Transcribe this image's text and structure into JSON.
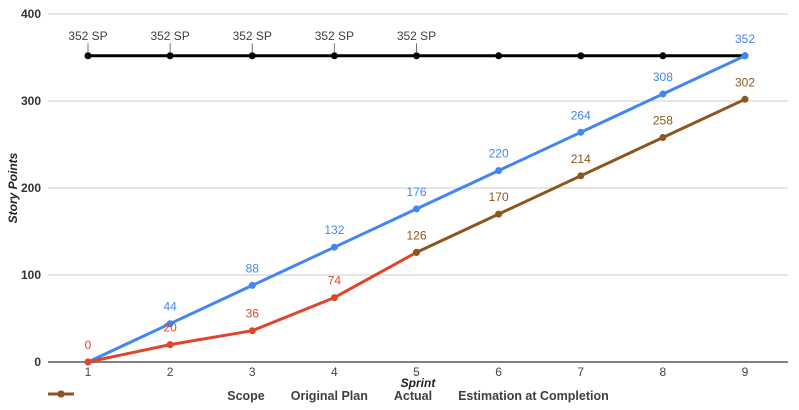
{
  "chart_data": {
    "type": "line",
    "title": "",
    "xlabel": "Sprint",
    "ylabel": "Story Points",
    "x_categories": [
      "1",
      "2",
      "3",
      "4",
      "5",
      "6",
      "7",
      "8",
      "9"
    ],
    "y_ticks": [
      0,
      100,
      200,
      300,
      400
    ],
    "ylim": [
      0,
      400
    ],
    "grid": "horizontal-only",
    "legend_position": "bottom",
    "background_color": "#ffffff",
    "gridline_color": "#cccccc",
    "baseline_color": "#808080",
    "series": [
      {
        "name": "Scope",
        "color": "#000000",
        "label_color": "#3c4043",
        "callout_labels": true,
        "values": [
          352,
          352,
          352,
          352,
          352,
          352,
          352,
          352,
          352
        ],
        "point_labels": [
          "352 SP",
          "352 SP",
          "352 SP",
          "352 SP",
          "352 SP",
          null,
          null,
          null,
          null
        ]
      },
      {
        "name": "Original Plan",
        "color": "#4285F4",
        "callout_labels": false,
        "values": [
          0,
          44,
          88,
          132,
          176,
          220,
          264,
          308,
          352
        ],
        "point_labels": [
          null,
          "44",
          "88",
          "132",
          "176",
          "220",
          "264",
          "308",
          "352"
        ]
      },
      {
        "name": "Actual",
        "color": "#E0452B",
        "callout_labels": false,
        "values": [
          0,
          20,
          36,
          74,
          126,
          null,
          null,
          null,
          null
        ],
        "point_labels": [
          "0",
          "20",
          "36",
          "74",
          null,
          null,
          null,
          null,
          null
        ]
      },
      {
        "name": "Estimation at Completion",
        "color": "#8C561E",
        "callout_labels": false,
        "values": [
          null,
          null,
          null,
          null,
          126,
          170,
          214,
          258,
          302
        ],
        "point_labels": [
          null,
          null,
          null,
          null,
          "126",
          "170",
          "214",
          "258",
          "302"
        ]
      }
    ]
  }
}
